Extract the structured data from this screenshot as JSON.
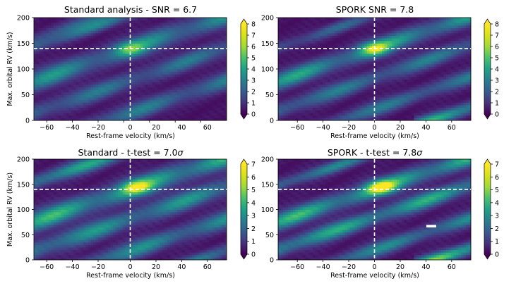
{
  "colors": {
    "vmin": "#440154",
    "ref_line": "#ffffff"
  },
  "chart_data": [
    {
      "type": "heatmap",
      "title": "Standard analysis - SNR = 6.7",
      "xlabel": "Rest-frame velocity (km/s)",
      "ylabel": "Max. orbital RV (km/s)",
      "xlim": [
        -75,
        75
      ],
      "ylim": [
        0,
        200
      ],
      "xticks": [
        "−60",
        "−40",
        "−20",
        "0",
        "20",
        "40",
        "60"
      ],
      "yticks": [
        "0",
        "50",
        "100",
        "150",
        "200"
      ],
      "colorbar": {
        "min": 0,
        "max": 8,
        "ticks": [
          "0",
          "1",
          "2",
          "3",
          "4",
          "5",
          "6",
          "7",
          "8"
        ]
      },
      "reference": {
        "x": 0,
        "y": 140
      },
      "peak": {
        "x": 0,
        "y": 140,
        "value": 6.7
      },
      "bands": [
        {
          "c": 140,
          "w": 14,
          "amp": 4.0,
          "xr": [
            -75,
            75
          ]
        },
        {
          "c": 78,
          "w": 12,
          "amp": 3.0,
          "xr": [
            -75,
            75
          ]
        },
        {
          "c": 15,
          "w": 12,
          "amp": 3.2,
          "xr": [
            -75,
            75
          ]
        },
        {
          "c": 220,
          "w": 10,
          "amp": 2.5,
          "xr": [
            -75,
            75
          ]
        },
        {
          "c": 205,
          "w": 8,
          "amp": 2.5,
          "xr": [
            -75,
            75
          ]
        }
      ]
    },
    {
      "type": "heatmap",
      "title": "SPORK SNR = 7.8",
      "xlabel": "Rest-frame velocity (km/s)",
      "ylabel": "",
      "xlim": [
        -75,
        75
      ],
      "ylim": [
        0,
        200
      ],
      "xticks": [
        "−60",
        "−40",
        "−20",
        "0",
        "20",
        "40",
        "60"
      ],
      "yticks": [
        "0",
        "50",
        "100",
        "150",
        "200"
      ],
      "colorbar": {
        "min": 0,
        "max": 8,
        "ticks": [
          "0",
          "1",
          "2",
          "3",
          "4",
          "5",
          "6",
          "7",
          "8"
        ]
      },
      "reference": {
        "x": 0,
        "y": 140
      },
      "peak": {
        "x": 0,
        "y": 140,
        "value": 7.8
      },
      "bands": [
        {
          "c": 140,
          "w": 12,
          "amp": 4.5,
          "xr": [
            -75,
            75
          ]
        },
        {
          "c": 83,
          "w": 11,
          "amp": 3.2,
          "xr": [
            -75,
            75
          ]
        },
        {
          "c": 22,
          "w": 10,
          "amp": 3.2,
          "xr": [
            -75,
            75
          ]
        },
        {
          "c": 205,
          "w": 8,
          "amp": 2.4,
          "xr": [
            -75,
            75
          ]
        },
        {
          "c": -38,
          "w": 9,
          "amp": 5.5,
          "xr": [
            30,
            75
          ]
        }
      ]
    },
    {
      "type": "heatmap",
      "title": "Standard - t-test = 7.0",
      "title_symbol": "σ",
      "xlabel": "Rest-frame velocity (km/s)",
      "ylabel": "Max. orbital RV (km/s)",
      "xlim": [
        -75,
        75
      ],
      "ylim": [
        0,
        200
      ],
      "xticks": [
        "−60",
        "−40",
        "−20",
        "0",
        "20",
        "40",
        "60"
      ],
      "yticks": [
        "0",
        "50",
        "100",
        "150",
        "200"
      ],
      "colorbar": {
        "min": 0,
        "max": 7,
        "ticks": [
          "0",
          "1",
          "2",
          "3",
          "4",
          "5",
          "6",
          "7"
        ]
      },
      "reference": {
        "x": 0,
        "y": 140
      },
      "peak": {
        "x": 5,
        "y": 145,
        "value": 7.0
      },
      "bands": [
        {
          "c": 140,
          "w": 14,
          "amp": 4.5,
          "xr": [
            -75,
            75
          ]
        },
        {
          "c": 82,
          "w": 13,
          "amp": 3.5,
          "xr": [
            -75,
            75
          ]
        },
        {
          "c": 18,
          "w": 12,
          "amp": 3.3,
          "xr": [
            -75,
            75
          ]
        },
        {
          "c": 218,
          "w": 10,
          "amp": 4.0,
          "xr": [
            -75,
            75
          ]
        },
        {
          "c": -45,
          "w": 9,
          "amp": 3.0,
          "xr": [
            30,
            75
          ]
        }
      ]
    },
    {
      "type": "heatmap",
      "title": "SPORK - t-test = 7.8",
      "title_symbol": "σ",
      "xlabel": "Rest-frame velocity (km/s)",
      "ylabel": "",
      "xlim": [
        -75,
        75
      ],
      "ylim": [
        0,
        200
      ],
      "xticks": [
        "−60",
        "−40",
        "−20",
        "0",
        "20",
        "40",
        "60"
      ],
      "yticks": [
        "0",
        "50",
        "100",
        "150",
        "200"
      ],
      "colorbar": {
        "min": 0,
        "max": 7,
        "ticks": [
          "0",
          "1",
          "2",
          "3",
          "4",
          "5",
          "6",
          "7"
        ]
      },
      "reference": {
        "x": 0,
        "y": 140
      },
      "peak": {
        "x": 5,
        "y": 145,
        "value": 7.8
      },
      "bands": [
        {
          "c": 140,
          "w": 12,
          "amp": 4.5,
          "xr": [
            -75,
            75
          ]
        },
        {
          "c": 85,
          "w": 11,
          "amp": 4.2,
          "xr": [
            -75,
            75
          ]
        },
        {
          "c": 20,
          "w": 10,
          "amp": 3.2,
          "xr": [
            -75,
            75
          ]
        },
        {
          "c": 212,
          "w": 8,
          "amp": 3.0,
          "xr": [
            -75,
            75
          ]
        },
        {
          "c": -40,
          "w": 9,
          "amp": 6.0,
          "xr": [
            30,
            75
          ]
        }
      ],
      "masked": {
        "x": [
          40,
          50
        ],
        "y": [
          65,
          72
        ]
      }
    }
  ]
}
